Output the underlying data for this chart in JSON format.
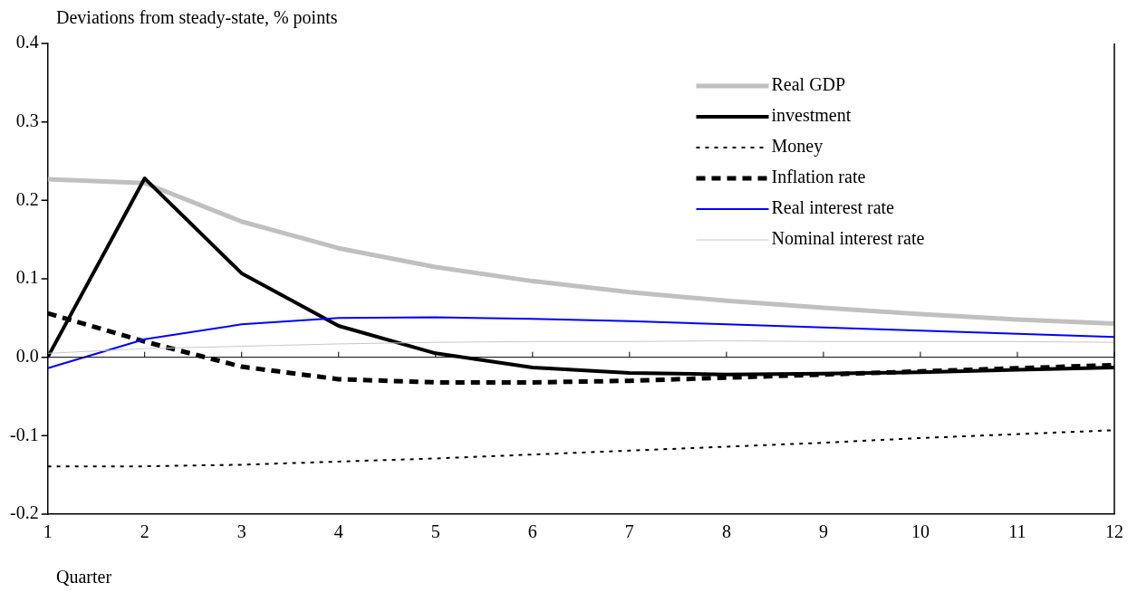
{
  "chart_data": {
    "type": "line",
    "ylabel": "Deviations from steady-state, % points",
    "xlabel": "Quarter",
    "x": [
      1,
      2,
      3,
      4,
      5,
      6,
      7,
      8,
      9,
      10,
      11,
      12
    ],
    "xlim": [
      1,
      12
    ],
    "xticks": [
      1,
      2,
      3,
      4,
      5,
      6,
      7,
      8,
      9,
      10,
      11,
      12
    ],
    "ylim": [
      -0.2,
      0.4
    ],
    "yticks": [
      {
        "value": -0.2,
        "label": "-0.2"
      },
      {
        "value": -0.1,
        "label": "-0.1"
      },
      {
        "value": 0,
        "label": "0.0"
      },
      {
        "value": 0.1,
        "label": "0.1"
      },
      {
        "value": 0.2,
        "label": "0.2"
      },
      {
        "value": 0.3,
        "label": "0.3"
      },
      {
        "value": 0.4,
        "label": "0.4"
      }
    ],
    "grid": false,
    "legend": "top right",
    "marker": "none",
    "ref_lines": [
      {
        "axis": "y",
        "value": 0,
        "color": "#000000"
      }
    ],
    "series": [
      {
        "name": "Real GDP",
        "color": "#c0c0c0",
        "line_style": "solid",
        "values": [
          0.227,
          0.222,
          0.173,
          0.139,
          0.115,
          0.097,
          0.083,
          0.072,
          0.063,
          0.055,
          0.048,
          0.043
        ]
      },
      {
        "name": "investment",
        "color": "#000000",
        "line_style": "solid",
        "values": [
          0,
          0.228,
          0.107,
          0.04,
          0.005,
          -0.013,
          -0.02,
          -0.022,
          -0.021,
          -0.019,
          -0.016,
          -0.013
        ]
      },
      {
        "name": "Money",
        "color": "#000000",
        "line_style": "dotted",
        "values": [
          -0.139,
          -0.139,
          -0.137,
          -0.133,
          -0.129,
          -0.124,
          -0.119,
          -0.114,
          -0.109,
          -0.103,
          -0.098,
          -0.093
        ]
      },
      {
        "name": "Inflation rate",
        "color": "#000000",
        "line_style": "dashed",
        "values": [
          0.056,
          0.02,
          -0.012,
          -0.028,
          -0.032,
          -0.032,
          -0.03,
          -0.026,
          -0.022,
          -0.018,
          -0.014,
          -0.01
        ]
      },
      {
        "name": "Real interest rate",
        "color": "#0000ff",
        "line_style": "solid",
        "values": [
          -0.014,
          0.023,
          0.042,
          0.05,
          0.051,
          0.049,
          0.046,
          0.042,
          0.038,
          0.034,
          0.03,
          0.026
        ]
      },
      {
        "name": "Nominal interest rate",
        "color": "#c8c8c8",
        "line_style": "solid",
        "values": [
          0.005,
          0.011,
          0.014,
          0.017,
          0.019,
          0.02,
          0.02,
          0.021,
          0.02,
          0.02,
          0.02,
          0.019
        ]
      }
    ]
  }
}
